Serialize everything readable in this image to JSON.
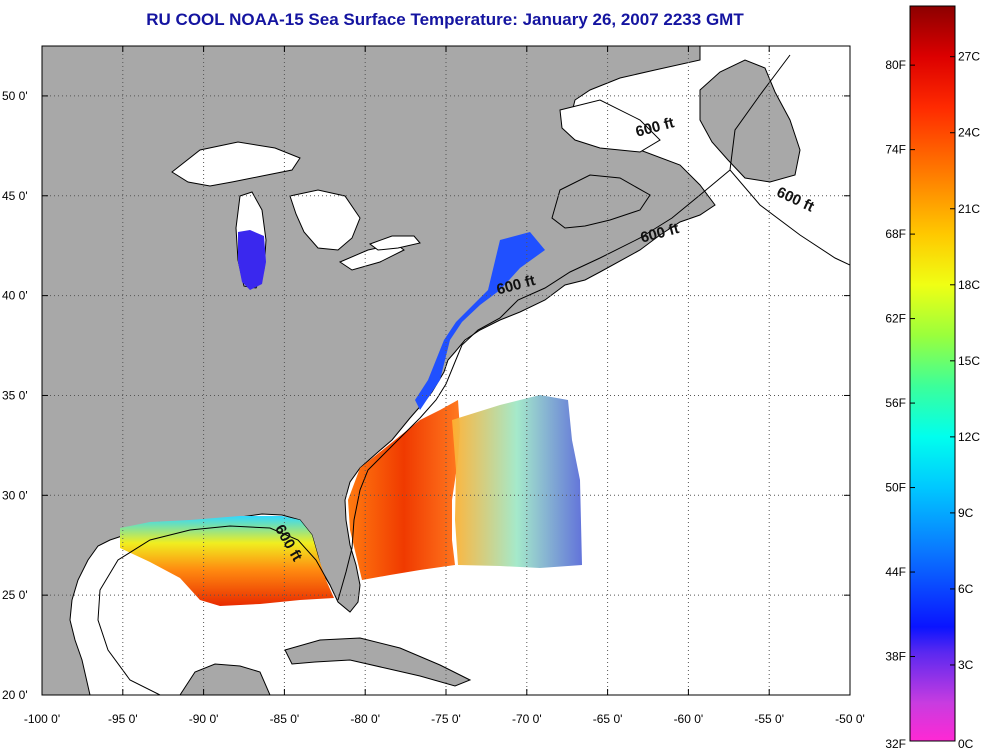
{
  "title": "RU COOL  NOAA-15  Sea Surface Temperature:  January 26, 2007 2233 GMT",
  "map": {
    "lon_range": [
      -100,
      -50
    ],
    "lat_range": [
      20,
      52.5
    ],
    "lon_ticks": [
      {
        "value": -100,
        "label": "-100 0'"
      },
      {
        "value": -95,
        "label": "-95 0'"
      },
      {
        "value": -90,
        "label": "-90 0'"
      },
      {
        "value": -85,
        "label": "-85 0'"
      },
      {
        "value": -80,
        "label": "-80 0'"
      },
      {
        "value": -75,
        "label": "-75 0'"
      },
      {
        "value": -70,
        "label": "-70 0'"
      },
      {
        "value": -65,
        "label": "-65 0'"
      },
      {
        "value": -60,
        "label": "-60 0'"
      },
      {
        "value": -55,
        "label": "-55 0'"
      },
      {
        "value": -50,
        "label": "-50 0'"
      }
    ],
    "lat_ticks": [
      {
        "value": 20,
        "label": "20 0'"
      },
      {
        "value": 25,
        "label": "25 0'"
      },
      {
        "value": 30,
        "label": "30 0'"
      },
      {
        "value": 35,
        "label": "35 0'"
      },
      {
        "value": 40,
        "label": "40 0'"
      },
      {
        "value": 45,
        "label": "45 0'"
      },
      {
        "value": 50,
        "label": "50 0'"
      }
    ],
    "grid": "dotted",
    "depth_labels": [
      {
        "text": "600 ft",
        "lon": -62,
        "lat": 48.2
      },
      {
        "text": "600 ft",
        "lon": -53.5,
        "lat": 44.6
      },
      {
        "text": "600 ft",
        "lon": -61.7,
        "lat": 42.9
      },
      {
        "text": "600 ft",
        "lon": -70.6,
        "lat": 40.3
      },
      {
        "text": "600 ft",
        "lon": -85,
        "lat": 27.5
      }
    ],
    "colors": {
      "land": "#a8a8a8",
      "water": "#ffffff",
      "coast": "#000000",
      "title": "#1414a0"
    }
  },
  "colorbar": {
    "left_labels": [
      "80F",
      "74F",
      "68F",
      "62F",
      "56F",
      "50F",
      "44F",
      "38F",
      "32F"
    ],
    "left_values_f": [
      80,
      74,
      68,
      62,
      56,
      50,
      44,
      38,
      32
    ],
    "right_labels": [
      "27C",
      "24C",
      "21C",
      "18C",
      "15C",
      "12C",
      "9C",
      "6C",
      "3C",
      "0C"
    ],
    "right_values_c": [
      27,
      24,
      21,
      18,
      15,
      12,
      9,
      6,
      3,
      0
    ],
    "range_c": [
      0,
      29
    ],
    "stops": [
      {
        "c": 0,
        "color": "#ff28d4"
      },
      {
        "c": 1.5,
        "color": "#c83ce0"
      },
      {
        "c": 3.5,
        "color": "#5a28f0"
      },
      {
        "c": 4.5,
        "color": "#0a14ff"
      },
      {
        "c": 7.5,
        "color": "#0a78ff"
      },
      {
        "c": 10,
        "color": "#00c8ff"
      },
      {
        "c": 12,
        "color": "#00ffee"
      },
      {
        "c": 14,
        "color": "#3cff9a"
      },
      {
        "c": 16,
        "color": "#9aff3c"
      },
      {
        "c": 18,
        "color": "#f0ff14"
      },
      {
        "c": 20,
        "color": "#ffc800"
      },
      {
        "c": 22.5,
        "color": "#ff7800"
      },
      {
        "c": 25,
        "color": "#ff2a00"
      },
      {
        "c": 27,
        "color": "#dc0000"
      },
      {
        "c": 29,
        "color": "#8c0000"
      }
    ]
  }
}
